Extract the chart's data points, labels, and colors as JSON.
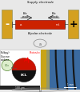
{
  "fig_width": 1.0,
  "fig_height": 1.16,
  "dpi": 100,
  "bg_color": "#e8e8e8",
  "panel_a": {
    "bg": "#e8e8e8",
    "supply_label": "Supply electrode",
    "bipolar_label": "Bipolar electrode",
    "minus_label": "-",
    "plus_label": "+",
    "left_electrode_color": "#d4a020",
    "right_electrode_color": "#d4a020",
    "bipolar_color": "#cc2200",
    "pole_anode": "Pole\nanode",
    "pole_cathode": "Pole\ncathode"
  },
  "panel_b_left": {
    "bg": "#ffffff",
    "ball_red": "#cc1100",
    "ball_black": "#111111",
    "bottom_bar": "#222222"
  },
  "panel_b_right": {
    "bg_blue": "#4a7ab5",
    "gold_color": "#c8a020",
    "line_color": "#1a1a1a",
    "bg_strip_light": "#d4c060"
  }
}
